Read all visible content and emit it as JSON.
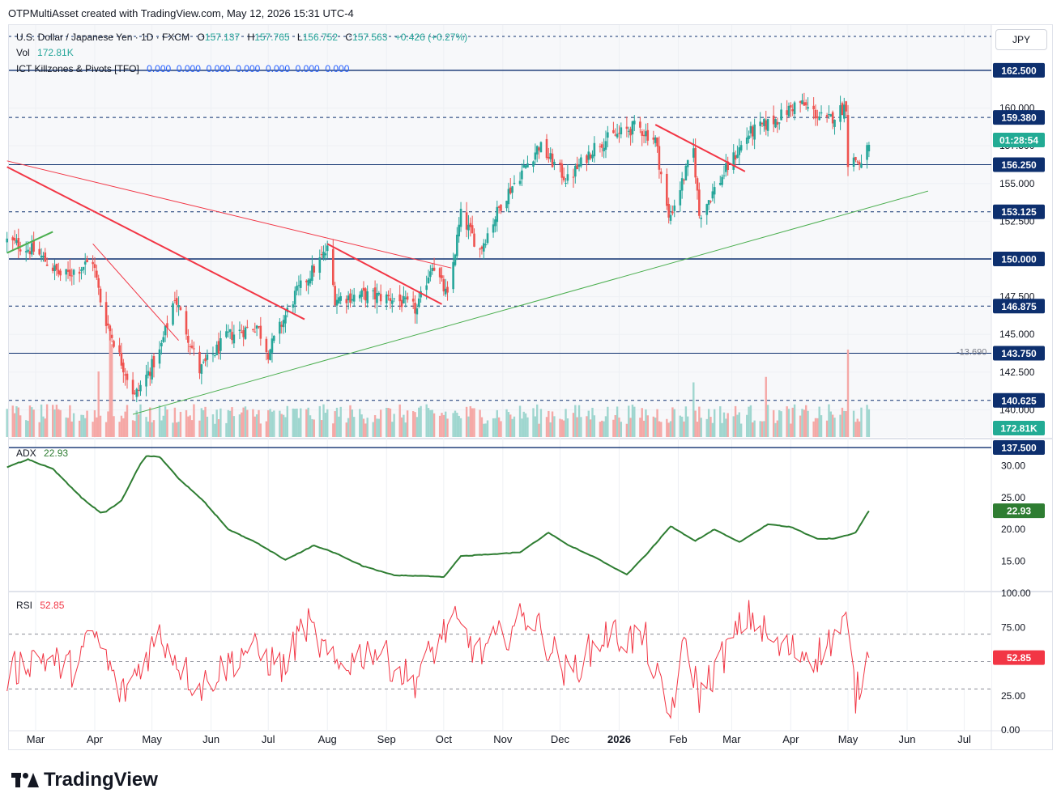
{
  "header": {
    "created_by": "OTPMultiAsset created with TradingView.com, May 12, 2026 15:31 UTC-4"
  },
  "legend": {
    "symbol": "U.S. Dollar / Japanese Yen · 1D · FXCM",
    "o_label": "O",
    "o": "157.137",
    "h_label": "H",
    "h": "157.765",
    "l_label": "L",
    "l": "156.752",
    "c_label": "C",
    "c": "157.563",
    "change": "+0.426 (+0.27%)",
    "vol_label": "Vol",
    "vol": "172.81K",
    "ict_label": "ICT Killzones & Pivots [TFO]",
    "ict_values": "0.000  0.000  0.000  0.000  0.000  0.000  0.000"
  },
  "currency": "JPY",
  "brand": "TradingView",
  "colors": {
    "up": "#26a69a",
    "down": "#ef5350",
    "level_navy": "#0d2f6e",
    "trend_red": "#f23645",
    "trend_green": "#4caf50",
    "adx": "#2e7d32",
    "rsi": "#f23645",
    "countdown_bg": "#22ab94"
  },
  "chart_data": [
    {
      "type": "candlestick",
      "pane": "price",
      "symbol": "USDJPY",
      "ylim": [
        138.2,
        165.5
      ],
      "price_ticks": [
        {
          "value": 160.0,
          "label": "160.000"
        },
        {
          "value": 157.5,
          "label": "157.500"
        },
        {
          "value": 155.0,
          "label": "155.000"
        },
        {
          "value": 152.5,
          "label": "152.500"
        },
        {
          "value": 147.5,
          "label": "147.500"
        },
        {
          "value": 145.0,
          "label": "145.000"
        },
        {
          "value": 142.5,
          "label": "142.500"
        },
        {
          "value": 140.0,
          "label": "140.000"
        }
      ],
      "levels": [
        {
          "value": 162.5,
          "label": "162.500",
          "style": "solid"
        },
        {
          "value": 159.38,
          "label": "159.380",
          "style": "dashed"
        },
        {
          "value": 156.25,
          "label": "156.250",
          "style": "solid"
        },
        {
          "value": 153.125,
          "label": "153.125",
          "style": "dashed"
        },
        {
          "value": 150.0,
          "label": "150.000",
          "style": "solid-bold"
        },
        {
          "value": 146.875,
          "label": "146.875",
          "style": "dashed"
        },
        {
          "value": 143.75,
          "label": "143.750",
          "style": "solid"
        },
        {
          "value": 140.625,
          "label": "140.625",
          "style": "dashed"
        },
        {
          "value": 137.5,
          "label": "137.500",
          "style": "solid"
        }
      ],
      "countdown": "01:28:54",
      "current_price": 157.563,
      "level_note": "-13.690",
      "anchors": [
        {
          "date": "2025-02-14",
          "close": 151.2
        },
        {
          "date": "2025-03-01",
          "close": 150.5
        },
        {
          "date": "2025-03-15",
          "close": 148.8
        },
        {
          "date": "2025-03-31",
          "close": 149.9
        },
        {
          "date": "2025-04-05",
          "close": 146.6
        },
        {
          "date": "2025-04-15",
          "close": 143.2
        },
        {
          "date": "2025-04-22",
          "close": 140.9
        },
        {
          "date": "2025-05-05",
          "close": 143.8
        },
        {
          "date": "2025-05-13",
          "close": 147.5
        },
        {
          "date": "2025-05-26",
          "close": 142.6
        },
        {
          "date": "2025-06-10",
          "close": 144.9
        },
        {
          "date": "2025-06-25",
          "close": 145.6
        },
        {
          "date": "2025-07-01",
          "close": 143.8
        },
        {
          "date": "2025-07-15",
          "close": 147.6
        },
        {
          "date": "2025-08-01",
          "close": 150.6
        },
        {
          "date": "2025-08-05",
          "close": 147.4
        },
        {
          "date": "2025-08-20",
          "close": 147.6
        },
        {
          "date": "2025-09-05",
          "close": 147.4
        },
        {
          "date": "2025-09-17",
          "close": 146.6
        },
        {
          "date": "2025-09-25",
          "close": 149.8
        },
        {
          "date": "2025-10-03",
          "close": 147.4
        },
        {
          "date": "2025-10-10",
          "close": 152.9
        },
        {
          "date": "2025-10-20",
          "close": 150.6
        },
        {
          "date": "2025-11-01",
          "close": 153.9
        },
        {
          "date": "2025-11-20",
          "close": 157.5
        },
        {
          "date": "2025-12-05",
          "close": 155.2
        },
        {
          "date": "2025-12-20",
          "close": 157.6
        },
        {
          "date": "2026-01-10",
          "close": 158.8
        },
        {
          "date": "2026-01-20",
          "close": 157.9
        },
        {
          "date": "2026-01-27",
          "close": 152.6
        },
        {
          "date": "2026-02-09",
          "close": 157.2
        },
        {
          "date": "2026-02-12",
          "close": 152.9
        },
        {
          "date": "2026-02-27",
          "close": 156.1
        },
        {
          "date": "2026-03-10",
          "close": 158.3
        },
        {
          "date": "2026-03-25",
          "close": 159.3
        },
        {
          "date": "2026-04-05",
          "close": 160.4
        },
        {
          "date": "2026-04-20",
          "close": 159.1
        },
        {
          "date": "2026-04-30",
          "close": 160.2
        },
        {
          "date": "2026-05-01",
          "close": 156.4
        },
        {
          "date": "2026-05-05",
          "close": 156.6
        },
        {
          "date": "2026-05-08",
          "close": 156.2
        },
        {
          "date": "2026-05-12",
          "close": 157.563
        }
      ],
      "trendlines": [
        {
          "color": "red",
          "from": {
            "date": "2025-02-14",
            "price": 156.1
          },
          "to": {
            "date": "2025-07-20",
            "price": 146.0
          }
        },
        {
          "color": "red",
          "from": {
            "date": "2025-02-14",
            "price": 156.5
          },
          "to": {
            "date": "2025-10-05",
            "price": 149.4
          }
        },
        {
          "color": "red",
          "from": {
            "date": "2025-03-31",
            "price": 151.0
          },
          "to": {
            "date": "2025-05-15",
            "price": 144.6
          }
        },
        {
          "color": "red",
          "from": {
            "date": "2025-08-01",
            "price": 151.0
          },
          "to": {
            "date": "2025-09-30",
            "price": 147.0
          }
        },
        {
          "color": "red",
          "from": {
            "date": "2026-01-20",
            "price": 158.9
          },
          "to": {
            "date": "2026-03-08",
            "price": 155.8
          }
        },
        {
          "color": "green",
          "from": {
            "date": "2025-02-14",
            "price": 150.4
          },
          "to": {
            "date": "2025-03-10",
            "price": 151.8
          }
        },
        {
          "color": "green",
          "from": {
            "date": "2025-04-21",
            "price": 139.7
          },
          "to": {
            "date": "2026-06-12",
            "price": 154.5
          }
        }
      ]
    },
    {
      "type": "bar",
      "pane": "volume",
      "name": "Vol",
      "last_value": "172.81K",
      "spikes": [
        {
          "date": "2025-04-03",
          "relative": 0.6
        },
        {
          "date": "2025-04-09",
          "relative": 1.0
        },
        {
          "date": "2025-04-10",
          "relative": 0.85
        },
        {
          "date": "2026-02-09",
          "relative": 0.5
        },
        {
          "date": "2026-03-19",
          "relative": 0.55
        },
        {
          "date": "2026-05-01",
          "relative": 0.8
        }
      ]
    },
    {
      "type": "line",
      "pane": "ADX",
      "name": "ADX",
      "last_value": "22.93",
      "ylim": [
        10.5,
        34
      ],
      "ticks": [
        {
          "value": 30,
          "label": "30.00"
        },
        {
          "value": 25,
          "label": "25.00"
        },
        {
          "value": 20,
          "label": "20.00"
        },
        {
          "value": 15,
          "label": "15.00"
        }
      ],
      "anchors": [
        {
          "date": "2025-02-14",
          "value": 29.8
        },
        {
          "date": "2025-02-25",
          "value": 31.0
        },
        {
          "date": "2025-03-10",
          "value": 29.5
        },
        {
          "date": "2025-03-25",
          "value": 25.0
        },
        {
          "date": "2025-04-05",
          "value": 22.4
        },
        {
          "date": "2025-04-15",
          "value": 24.5
        },
        {
          "date": "2025-04-27",
          "value": 31.5
        },
        {
          "date": "2025-05-05",
          "value": 31.4
        },
        {
          "date": "2025-05-15",
          "value": 28.0
        },
        {
          "date": "2025-05-28",
          "value": 24.5
        },
        {
          "date": "2025-06-10",
          "value": 20.0
        },
        {
          "date": "2025-06-25",
          "value": 17.9
        },
        {
          "date": "2025-07-10",
          "value": 15.2
        },
        {
          "date": "2025-07-25",
          "value": 17.5
        },
        {
          "date": "2025-08-05",
          "value": 16.3
        },
        {
          "date": "2025-08-20",
          "value": 14.2
        },
        {
          "date": "2025-09-05",
          "value": 12.8
        },
        {
          "date": "2025-09-20",
          "value": 12.7
        },
        {
          "date": "2025-10-01",
          "value": 12.5
        },
        {
          "date": "2025-10-10",
          "value": 15.8
        },
        {
          "date": "2025-10-25",
          "value": 16.1
        },
        {
          "date": "2025-11-10",
          "value": 16.4
        },
        {
          "date": "2025-11-25",
          "value": 19.5
        },
        {
          "date": "2025-12-05",
          "value": 17.6
        },
        {
          "date": "2025-12-20",
          "value": 15.5
        },
        {
          "date": "2026-01-05",
          "value": 12.9
        },
        {
          "date": "2026-01-15",
          "value": 16.0
        },
        {
          "date": "2026-01-28",
          "value": 20.5
        },
        {
          "date": "2026-02-10",
          "value": 18.2
        },
        {
          "date": "2026-02-20",
          "value": 20.0
        },
        {
          "date": "2026-03-05",
          "value": 18.0
        },
        {
          "date": "2026-03-20",
          "value": 20.8
        },
        {
          "date": "2026-04-01",
          "value": 20.4
        },
        {
          "date": "2026-04-15",
          "value": 18.5
        },
        {
          "date": "2026-04-25",
          "value": 18.6
        },
        {
          "date": "2026-05-05",
          "value": 19.5
        },
        {
          "date": "2026-05-12",
          "value": 22.93
        }
      ]
    },
    {
      "type": "line",
      "pane": "RSI",
      "name": "RSI",
      "last_value": "52.85",
      "ylim": [
        0,
        100
      ],
      "ticks": [
        {
          "value": 100,
          "label": "100.00"
        },
        {
          "value": 75,
          "label": "75.00"
        },
        {
          "value": 25,
          "label": "25.00"
        },
        {
          "value": 0,
          "label": "0.00"
        }
      ],
      "bands": [
        70,
        50,
        30
      ],
      "anchors": [
        {
          "date": "2025-02-14",
          "value": 40
        },
        {
          "date": "2025-03-01",
          "value": 55
        },
        {
          "date": "2025-03-20",
          "value": 45
        },
        {
          "date": "2025-04-01",
          "value": 70
        },
        {
          "date": "2025-04-15",
          "value": 25
        },
        {
          "date": "2025-05-05",
          "value": 70
        },
        {
          "date": "2025-05-25",
          "value": 30
        },
        {
          "date": "2025-06-20",
          "value": 60
        },
        {
          "date": "2025-07-10",
          "value": 45
        },
        {
          "date": "2025-07-20",
          "value": 80
        },
        {
          "date": "2025-08-05",
          "value": 45
        },
        {
          "date": "2025-08-25",
          "value": 60
        },
        {
          "date": "2025-09-15",
          "value": 35
        },
        {
          "date": "2025-10-05",
          "value": 80
        },
        {
          "date": "2025-10-20",
          "value": 55
        },
        {
          "date": "2025-11-15",
          "value": 85
        },
        {
          "date": "2025-12-05",
          "value": 40
        },
        {
          "date": "2025-12-25",
          "value": 70
        },
        {
          "date": "2026-01-15",
          "value": 65
        },
        {
          "date": "2026-01-27",
          "value": 8
        },
        {
          "date": "2026-02-05",
          "value": 65
        },
        {
          "date": "2026-02-12",
          "value": 25
        },
        {
          "date": "2026-03-10",
          "value": 85
        },
        {
          "date": "2026-03-25",
          "value": 60
        },
        {
          "date": "2026-04-15",
          "value": 55
        },
        {
          "date": "2026-04-30",
          "value": 78
        },
        {
          "date": "2026-05-05",
          "value": 25
        },
        {
          "date": "2026-05-12",
          "value": 52.85
        }
      ]
    }
  ],
  "time_axis": [
    {
      "label": "Mar",
      "date": "2025-03-01"
    },
    {
      "label": "Apr",
      "date": "2025-04-01"
    },
    {
      "label": "May",
      "date": "2025-05-01"
    },
    {
      "label": "Jun",
      "date": "2025-06-01"
    },
    {
      "label": "Jul",
      "date": "2025-07-01"
    },
    {
      "label": "Aug",
      "date": "2025-08-01"
    },
    {
      "label": "Sep",
      "date": "2025-09-01"
    },
    {
      "label": "Oct",
      "date": "2025-10-01"
    },
    {
      "label": "Nov",
      "date": "2025-11-01"
    },
    {
      "label": "Dec",
      "date": "2025-12-01"
    },
    {
      "label": "2026",
      "date": "2026-01-01",
      "bold": true
    },
    {
      "label": "Feb",
      "date": "2026-02-01"
    },
    {
      "label": "Mar",
      "date": "2026-03-01"
    },
    {
      "label": "Apr",
      "date": "2026-04-01"
    },
    {
      "label": "May",
      "date": "2026-05-01"
    },
    {
      "label": "Jun",
      "date": "2026-06-01"
    },
    {
      "label": "Jul",
      "date": "2026-07-01"
    }
  ]
}
